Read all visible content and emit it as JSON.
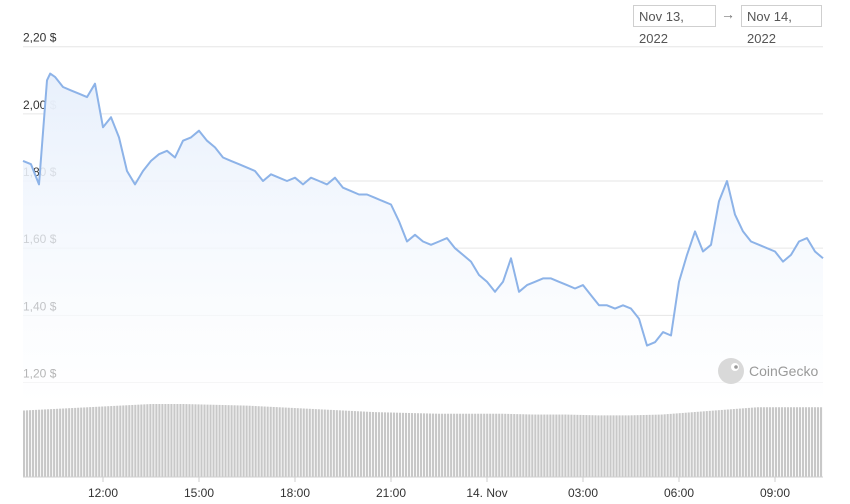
{
  "date_range": {
    "from": "Nov 13, 2022",
    "arrow": "→",
    "to": "Nov 14, 2022"
  },
  "watermark": {
    "text": "CoinGecko"
  },
  "colors": {
    "line": "#8db3e8",
    "area_top": "#e8f0fc",
    "volume": "#c8c8c8",
    "grid": "#e6e6e6"
  },
  "chart_data": {
    "type": "line",
    "title": "",
    "xlabel": "",
    "ylabel": "",
    "ylim": [
      1.13,
      2.22
    ],
    "yticks": [
      {
        "value": 1.2,
        "label": "1,20 $"
      },
      {
        "value": 1.4,
        "label": "1,40 $"
      },
      {
        "value": 1.6,
        "label": "1,60 $"
      },
      {
        "value": 1.8,
        "label": "1,80 $"
      },
      {
        "value": 2.0,
        "label": "2,00 $"
      },
      {
        "value": 2.2,
        "label": "2,20 $"
      }
    ],
    "xlim": [
      0,
      25
    ],
    "xticks": [
      {
        "x": 2.5,
        "label": "12:00"
      },
      {
        "x": 5.5,
        "label": "15:00"
      },
      {
        "x": 8.5,
        "label": "18:00"
      },
      {
        "x": 11.5,
        "label": "21:00"
      },
      {
        "x": 14.5,
        "label": "14. Nov"
      },
      {
        "x": 17.5,
        "label": "03:00"
      },
      {
        "x": 20.5,
        "label": "06:00"
      },
      {
        "x": 23.5,
        "label": "09:00"
      }
    ],
    "grid": true,
    "series": [
      {
        "x": [
          0,
          0.25,
          0.5,
          0.75,
          0.85,
          1.0,
          1.25,
          1.5,
          1.75,
          2.0,
          2.25,
          2.5,
          2.75,
          3.0,
          3.25,
          3.5,
          3.75,
          4.0,
          4.25,
          4.5,
          4.75,
          5.0,
          5.25,
          5.5,
          5.75,
          6.0,
          6.25,
          6.5,
          6.75,
          7.0,
          7.25,
          7.5,
          7.75,
          8.0,
          8.25,
          8.5,
          8.75,
          9.0,
          9.25,
          9.5,
          9.75,
          10.0,
          10.25,
          10.5,
          10.75,
          11.0,
          11.25,
          11.5,
          11.75,
          12.0,
          12.25,
          12.5,
          12.75,
          13.0,
          13.25,
          13.5,
          13.75,
          14.0,
          14.25,
          14.5,
          14.75,
          15.0,
          15.25,
          15.5,
          15.75,
          16.0,
          16.25,
          16.5,
          16.75,
          17.0,
          17.25,
          17.5,
          17.75,
          18.0,
          18.25,
          18.5,
          18.75,
          19.0,
          19.25,
          19.5,
          19.75,
          20.0,
          20.25,
          20.5,
          20.75,
          21.0,
          21.25,
          21.5,
          21.75,
          22.0,
          22.25,
          22.5,
          22.75,
          23.0,
          23.25,
          23.5,
          23.75,
          24.0,
          24.25,
          24.5,
          24.75,
          25.0
        ],
        "values": [
          1.86,
          1.85,
          1.79,
          2.1,
          2.12,
          2.11,
          2.08,
          2.07,
          2.06,
          2.05,
          2.09,
          1.96,
          1.99,
          1.93,
          1.83,
          1.79,
          1.83,
          1.86,
          1.88,
          1.89,
          1.87,
          1.92,
          1.93,
          1.95,
          1.92,
          1.9,
          1.87,
          1.86,
          1.85,
          1.84,
          1.83,
          1.8,
          1.82,
          1.81,
          1.8,
          1.81,
          1.79,
          1.81,
          1.8,
          1.79,
          1.81,
          1.78,
          1.77,
          1.76,
          1.76,
          1.75,
          1.74,
          1.73,
          1.68,
          1.62,
          1.64,
          1.62,
          1.61,
          1.62,
          1.63,
          1.6,
          1.58,
          1.56,
          1.52,
          1.5,
          1.47,
          1.5,
          1.57,
          1.47,
          1.49,
          1.5,
          1.51,
          1.51,
          1.5,
          1.49,
          1.48,
          1.49,
          1.46,
          1.43,
          1.43,
          1.42,
          1.43,
          1.42,
          1.39,
          1.31,
          1.32,
          1.35,
          1.34,
          1.5,
          1.58,
          1.65,
          1.59,
          1.61,
          1.74,
          1.8,
          1.7,
          1.65,
          1.62,
          1.61,
          1.6,
          1.59,
          1.56,
          1.58,
          1.62,
          1.63,
          1.59,
          1.57
        ]
      }
    ],
    "volume": {
      "description": "trading volume bars (relative level)",
      "segments": [
        0.82,
        0.84,
        0.86,
        0.88,
        0.9,
        0.9,
        0.89,
        0.88,
        0.86,
        0.84,
        0.82,
        0.8,
        0.79,
        0.78,
        0.78,
        0.78,
        0.77,
        0.77,
        0.76,
        0.76,
        0.77,
        0.8,
        0.83,
        0.86,
        0.86,
        0.86
      ]
    }
  }
}
